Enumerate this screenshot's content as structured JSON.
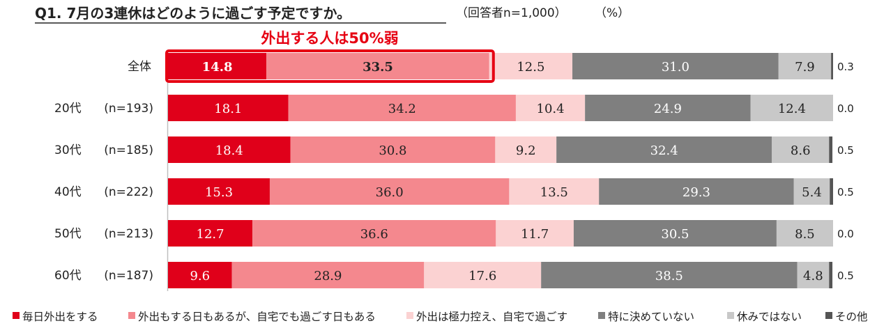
{
  "header": {
    "question": "Q1. 7月の3連休はどのように過ごす予定ですか。",
    "respondents": "（回答者n=1,000）",
    "unit": "（%）"
  },
  "annotation": {
    "text": "外出する人は50%弱"
  },
  "colors": {
    "series": [
      "#e0001a",
      "#f4888e",
      "#fbd2d2",
      "#7f7f7f",
      "#c8c8c8",
      "#555555"
    ],
    "highlight": "#e60012",
    "axis": "#bfbfbf",
    "label_light": "#ffffff",
    "label_dark": "#222222"
  },
  "chart_data": {
    "type": "bar",
    "orientation": "horizontal-stacked-100",
    "categories": [
      "全体",
      "20代　(n=193)",
      "30代　(n=185)",
      "40代　(n=222)",
      "50代　(n=213)",
      "60代　(n=187)"
    ],
    "series": [
      {
        "name": "毎日外出をする",
        "values": [
          14.8,
          18.1,
          18.4,
          15.3,
          12.7,
          9.6
        ]
      },
      {
        "name": "外出もする日もあるが、自宅でも過ごす日もある",
        "values": [
          33.5,
          34.2,
          30.8,
          36.0,
          36.6,
          28.9
        ]
      },
      {
        "name": "外出は極力控え、自宅で過ごす",
        "values": [
          12.5,
          10.4,
          9.2,
          13.5,
          11.7,
          17.6
        ]
      },
      {
        "name": "特に決めていない",
        "values": [
          31.0,
          24.9,
          32.4,
          29.3,
          30.5,
          38.5
        ]
      },
      {
        "name": "休みではない",
        "values": [
          7.9,
          12.4,
          8.6,
          5.4,
          8.5,
          4.8
        ]
      },
      {
        "name": "その他",
        "values": [
          0.3,
          0.0,
          0.5,
          0.5,
          0.0,
          0.5
        ]
      }
    ],
    "labels": [
      [
        "14.8",
        "33.5",
        "12.5",
        "31.0",
        "7.9",
        "0.3"
      ],
      [
        "18.1",
        "34.2",
        "10.4",
        "24.9",
        "12.4",
        "0.0"
      ],
      [
        "18.4",
        "30.8",
        "9.2",
        "32.4",
        "8.6",
        "0.5"
      ],
      [
        "15.3",
        "36.0",
        "13.5",
        "29.3",
        "5.4",
        "0.5"
      ],
      [
        "12.7",
        "36.6",
        "11.7",
        "30.5",
        "8.5",
        "0.0"
      ],
      [
        "9.6",
        "28.9",
        "17.6",
        "38.5",
        "4.8",
        "0.5"
      ]
    ],
    "xlim": [
      0,
      100
    ],
    "legend_position": "bottom",
    "highlight": {
      "row": 0,
      "series": [
        0,
        1
      ]
    }
  }
}
